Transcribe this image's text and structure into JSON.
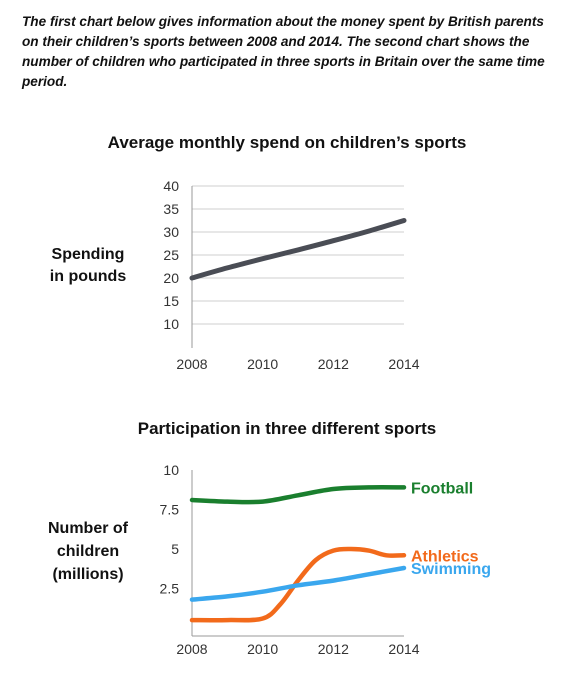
{
  "intro_text": "The first chart below gives information about the money spent by British parents on their children’s sports between 2008 and 2014. The second chart shows the number of children who participated in three sports in Britain over the same time period.",
  "chart_data": [
    {
      "type": "line",
      "title": "Average monthly spend on children’s sports",
      "ylabel_lines": [
        "Spending",
        "in pounds"
      ],
      "xlabel": "",
      "x_ticks": [
        "2008",
        "2010",
        "2012",
        "2014"
      ],
      "y_ticks": [
        "10",
        "15",
        "20",
        "25",
        "30",
        "35",
        "40"
      ],
      "xlim": [
        2008,
        2014
      ],
      "ylim": [
        10,
        40
      ],
      "grid": true,
      "series": [
        {
          "color": "#4a4d55",
          "x": [
            2008,
            2009,
            2010,
            2011,
            2012,
            2013,
            2014
          ],
          "y": [
            20,
            22.2,
            24.2,
            26.1,
            28.1,
            30.2,
            32.5
          ]
        }
      ]
    },
    {
      "type": "line",
      "title": "Participation in three different sports",
      "ylabel_lines": [
        "Number of",
        "children",
        "(millions)"
      ],
      "xlabel": "",
      "x_ticks": [
        "2008",
        "2010",
        "2012",
        "2014"
      ],
      "y_ticks": [
        "2.5",
        "5",
        "7.5",
        "10"
      ],
      "y_tick_values": [
        2.5,
        5,
        7.5,
        10
      ],
      "xlim": [
        2008,
        2014
      ],
      "ylim": [
        0,
        10
      ],
      "grid": false,
      "series": [
        {
          "name": "Football",
          "color": "#1a7f2e",
          "x": [
            2008,
            2009,
            2010,
            2011,
            2012,
            2013,
            2014
          ],
          "y": [
            8.1,
            8.0,
            8.0,
            8.4,
            8.8,
            8.9,
            8.9
          ]
        },
        {
          "name": "Athletics",
          "color": "#f26a1b",
          "x": [
            2008,
            2009,
            2010,
            2010.5,
            2011,
            2011.5,
            2012,
            2012.5,
            2013,
            2013.5,
            2014
          ],
          "y": [
            0.5,
            0.5,
            0.6,
            1.5,
            3.0,
            4.3,
            4.9,
            5.0,
            4.9,
            4.6,
            4.6
          ]
        },
        {
          "name": "Swimming",
          "color": "#3aa7ee",
          "x": [
            2008,
            2009,
            2010,
            2011,
            2012,
            2013,
            2014
          ],
          "y": [
            1.8,
            2.0,
            2.3,
            2.7,
            3.0,
            3.4,
            3.8
          ]
        }
      ]
    }
  ]
}
